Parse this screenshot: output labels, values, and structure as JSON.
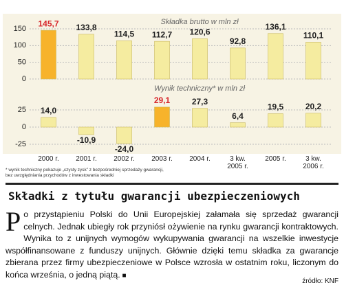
{
  "chart_data": [
    {
      "type": "bar",
      "title": "Składka brutto w mln zł",
      "values": [
        145.7,
        133.8,
        114.5,
        112.7,
        120.6,
        92.8,
        136.1,
        110.1
      ],
      "value_labels": [
        "145,7",
        "133,8",
        "114,5",
        "112,7",
        "120,6",
        "92,8",
        "136,1",
        "110,1"
      ],
      "colors": [
        "#f7b32b",
        "#f5eca0",
        "#f5eca0",
        "#f5eca0",
        "#f5eca0",
        "#f5eca0",
        "#f5eca0",
        "#f5eca0"
      ],
      "label_colors": [
        "#d7262b",
        "#222222",
        "#222222",
        "#222222",
        "#222222",
        "#222222",
        "#222222",
        "#222222"
      ],
      "ylim": [
        0,
        150
      ],
      "yticks": [
        0,
        50,
        100,
        150
      ],
      "grid": true
    },
    {
      "type": "bar",
      "title": "Wynik techniczny* w mln zł",
      "categories": [
        "2000 r.",
        "2001 r.",
        "2002 r.",
        "2003 r.",
        "2004 r.",
        "3 kw. 2005 r.",
        "2005 r.",
        "3 kw. 2006 r."
      ],
      "values": [
        14.0,
        -10.9,
        -24.0,
        29.1,
        27.3,
        6.4,
        19.5,
        20.2
      ],
      "value_labels": [
        "14,0",
        "-10,9",
        "-24,0",
        "29,1",
        "27,3",
        "6,4",
        "19,5",
        "20,2"
      ],
      "colors": [
        "#f5eca0",
        "#f5eca0",
        "#f5eca0",
        "#f7b32b",
        "#f5eca0",
        "#f5eca0",
        "#f5eca0",
        "#f5eca0"
      ],
      "label_colors": [
        "#222222",
        "#222222",
        "#222222",
        "#d7262b",
        "#222222",
        "#222222",
        "#222222",
        "#222222"
      ],
      "ylim": [
        -30,
        35
      ],
      "yticks": [
        -25,
        0,
        25
      ],
      "grid": true
    }
  ],
  "footnote": [
    "* wynik techniczny pokazuje „czysty zysk” z bezpośredniej sprzedaży gwarancji,",
    "bez uwzględniania przychodów z inwestowania składki"
  ],
  "headline": "Składki z tytułu gwarancji ubezpieczeniowych",
  "body": "Po przystąpieniu Polski do Unii Europejskiej załamała się sprzedaż gwarancji celnych. Jednak ubiegły rok przyniósł ożywienie na rynku gwarancji kontraktowych. Wynika to z unijnych wymogów wykupywania gwarancji na wszelkie inwestycje współfinansowane z funduszy unijnych. Głównie dzięki temu składka za gwarancje zbierana przez firmy ubezpieczeniowe w Polsce wzrosła w ostatnim roku, liczonym do końca września, o jedną piątą.",
  "source": "źródło: KNF"
}
